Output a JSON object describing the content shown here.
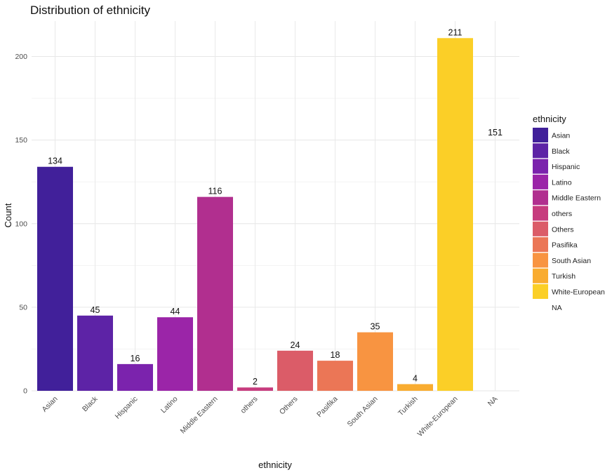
{
  "chart_data": {
    "type": "bar",
    "title": "Distribution of ethnicity",
    "xlabel": "ethnicity",
    "ylabel": "Count",
    "ylim": [
      0,
      215
    ],
    "yticks": [
      0,
      50,
      100,
      150,
      200
    ],
    "grid": true,
    "legend_position": "right",
    "legend_title": "ethnicity",
    "categories": [
      "Asian",
      "Black",
      "Hispanic",
      "Latino",
      "Middle Eastern",
      "others",
      "Others",
      "Pasifika",
      "South Asian",
      "Turkish",
      "White-European",
      "NA"
    ],
    "values": [
      134,
      45,
      16,
      44,
      116,
      2,
      24,
      18,
      35,
      4,
      211,
      151
    ],
    "colors": [
      "#41209A",
      "#5D23A6",
      "#7B23AD",
      "#9B25A8",
      "#B12F8F",
      "#C73C7E",
      "#DB5C68",
      "#EB7656",
      "#F89441",
      "#F9AC30",
      "#FBCF27",
      null
    ]
  }
}
